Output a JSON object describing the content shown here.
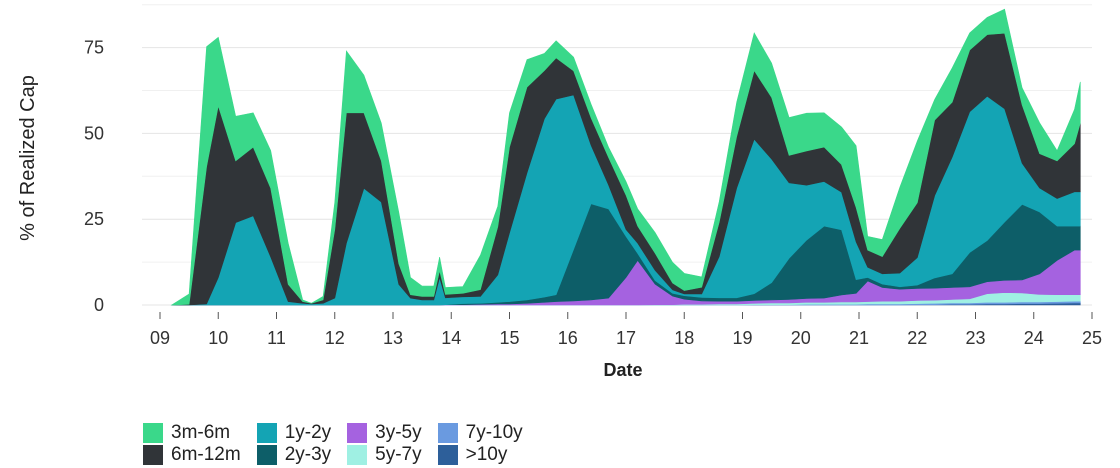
{
  "chart_data": {
    "type": "area",
    "stacked": true,
    "title": "",
    "xlabel": "Date",
    "ylabel": "% of Realized Cap",
    "x_tick_labels": [
      "09",
      "10",
      "11",
      "12",
      "13",
      "14",
      "15",
      "16",
      "17",
      "18",
      "19",
      "20",
      "21",
      "22",
      "23",
      "24",
      "25"
    ],
    "y_ticks": [
      0,
      25,
      50,
      75
    ],
    "xlim": [
      2009,
      2025
    ],
    "ylim": [
      0,
      88
    ],
    "grid": "horizontal",
    "legend_position": "bottom-left",
    "x": [
      2009.2,
      2009.5,
      2009.8,
      2010.0,
      2010.3,
      2010.6,
      2010.9,
      2011.2,
      2011.45,
      2011.6,
      2011.8,
      2012.0,
      2012.2,
      2012.5,
      2012.8,
      2013.1,
      2013.3,
      2013.5,
      2013.7,
      2013.8,
      2013.9,
      2014.2,
      2014.5,
      2014.8,
      2015.0,
      2015.3,
      2015.6,
      2015.8,
      2016.1,
      2016.4,
      2016.7,
      2017.0,
      2017.2,
      2017.5,
      2017.8,
      2018.0,
      2018.3,
      2018.6,
      2018.9,
      2019.2,
      2019.5,
      2019.8,
      2020.1,
      2020.4,
      2020.7,
      2020.95,
      2021.15,
      2021.4,
      2021.7,
      2022.0,
      2022.3,
      2022.6,
      2022.9,
      2023.2,
      2023.5,
      2023.8,
      2024.1,
      2024.4,
      2024.7,
      2024.8
    ],
    "series": [
      {
        "name": ">10y",
        "color": "#2d5f9a",
        "values": [
          0,
          0,
          0,
          0,
          0,
          0,
          0,
          0,
          0,
          0,
          0,
          0,
          0,
          0,
          0,
          0,
          0,
          0,
          0,
          0,
          0,
          0,
          0,
          0,
          0,
          0,
          0,
          0,
          0,
          0,
          0,
          0,
          0,
          0,
          0,
          0,
          0,
          0,
          0,
          0,
          0,
          0,
          0,
          0,
          0,
          0,
          0,
          0,
          0,
          0.1,
          0.1,
          0.2,
          0.2,
          0.3,
          0.3,
          0.4,
          0.4,
          0.5,
          0.6,
          0.6
        ]
      },
      {
        "name": "7y-10y",
        "color": "#6a9ae0",
        "values": [
          0,
          0,
          0,
          0,
          0,
          0,
          0,
          0,
          0,
          0,
          0,
          0,
          0,
          0,
          0,
          0,
          0,
          0,
          0,
          0,
          0,
          0,
          0,
          0,
          0,
          0,
          0,
          0,
          0,
          0,
          0,
          0,
          0,
          0,
          0,
          0,
          0,
          0,
          0,
          0.1,
          0.1,
          0.1,
          0.2,
          0.2,
          0.2,
          0.2,
          0.3,
          0.3,
          0.3,
          0.3,
          0.4,
          0.4,
          0.4,
          0.5,
          0.5,
          0.5,
          0.5,
          0.5,
          0.5,
          0.5
        ]
      },
      {
        "name": "5y-7y",
        "color": "#9ff0e3",
        "values": [
          0,
          0,
          0,
          0,
          0,
          0,
          0,
          0,
          0,
          0,
          0,
          0,
          0,
          0,
          0,
          0,
          0,
          0,
          0,
          0,
          0,
          0,
          0,
          0,
          0,
          0,
          0,
          0,
          0,
          0,
          0,
          0,
          0,
          0.1,
          0.1,
          0.2,
          0.2,
          0.3,
          0.3,
          0.4,
          0.5,
          0.5,
          0.6,
          0.6,
          0.7,
          0.7,
          0.7,
          0.8,
          0.8,
          0.9,
          0.9,
          1,
          1.2,
          2.5,
          2.8,
          2.6,
          2.2,
          2.0,
          1.9,
          1.9
        ]
      },
      {
        "name": "3y-5y",
        "color": "#a562e0",
        "values": [
          0,
          0,
          0,
          0,
          0,
          0,
          0,
          0,
          0,
          0,
          0,
          0,
          0,
          0,
          0,
          0,
          0,
          0,
          0,
          0,
          0.1,
          0.1,
          0.2,
          0.3,
          0.3,
          0.5,
          0.8,
          1,
          1.2,
          1.5,
          2,
          8,
          13,
          6,
          2.5,
          1.5,
          1,
          0.8,
          0.8,
          0.8,
          0.9,
          1,
          1.1,
          1.2,
          2,
          2.5,
          6,
          4,
          3.5,
          3.5,
          3.5,
          3.5,
          3.5,
          3.5,
          3.6,
          3.8,
          6,
          10,
          13,
          13
        ]
      },
      {
        "name": "2y-3y",
        "color": "#0d5e68",
        "values": [
          0,
          0,
          0,
          0,
          0,
          0,
          0,
          0,
          0,
          0,
          0,
          0,
          0,
          0,
          0,
          0,
          0,
          0,
          0,
          0,
          0,
          0.3,
          0.3,
          0.5,
          0.7,
          1,
          1.5,
          2,
          15,
          28,
          26,
          12,
          2,
          1,
          0.8,
          1,
          1,
          1,
          1,
          2,
          5,
          12,
          17,
          21,
          19,
          4,
          1,
          1,
          0.7,
          1,
          3,
          4,
          10,
          12,
          17,
          22,
          18,
          10,
          7,
          7
        ]
      },
      {
        "name": "1y-2y",
        "color": "#14a4b4",
        "values": [
          0,
          0,
          0.3,
          8,
          24,
          26,
          14,
          1,
          0.5,
          0.3,
          0.5,
          2,
          18,
          34,
          30,
          6,
          2,
          1.5,
          1.5,
          8,
          2,
          2,
          2,
          8,
          20,
          37,
          52,
          57,
          45,
          17,
          7,
          2,
          3,
          3,
          1,
          0.5,
          1,
          12,
          32,
          45,
          36,
          22,
          16,
          13,
          11,
          11,
          3,
          3,
          4,
          8,
          24,
          34,
          41,
          42,
          33,
          12,
          7,
          8,
          10,
          10
        ]
      },
      {
        "name": "6m-12m",
        "color": "#303438",
        "values": [
          0,
          0.2,
          40,
          50,
          18,
          20,
          20,
          5,
          0.5,
          0.2,
          1,
          20,
          38,
          22,
          12,
          6,
          1,
          1,
          1,
          2,
          1,
          1,
          2,
          14,
          25,
          25,
          14,
          12,
          7,
          8,
          8,
          10,
          5,
          5,
          2,
          1,
          2,
          10,
          15,
          20,
          18,
          8,
          10,
          10,
          8,
          10,
          5,
          5,
          13,
          16,
          22,
          16,
          18,
          18,
          22,
          17,
          10,
          11,
          14,
          20
        ]
      },
      {
        "name": "3m-6m",
        "color": "#3ad88a",
        "values": [
          0,
          3,
          35,
          20,
          13,
          10,
          11,
          12,
          0.5,
          0,
          1,
          8,
          18,
          11,
          11,
          15,
          5,
          3,
          3,
          4,
          2,
          2,
          10,
          6,
          10,
          8,
          5,
          5,
          4,
          4,
          3,
          4,
          5,
          6,
          6,
          5,
          3,
          6,
          10,
          11,
          10,
          11,
          11,
          10,
          11,
          18,
          4,
          5,
          12,
          18,
          6,
          10,
          5,
          5,
          7,
          5,
          9,
          3,
          10,
          12
        ]
      }
    ]
  },
  "legend": {
    "items": [
      {
        "label": "3m-6m",
        "color": "#3ad88a"
      },
      {
        "label": "6m-12m",
        "color": "#303438"
      },
      {
        "label": "1y-2y",
        "color": "#14a4b4"
      },
      {
        "label": "2y-3y",
        "color": "#0d5e68"
      },
      {
        "label": "3y-5y",
        "color": "#a562e0"
      },
      {
        "label": "5y-7y",
        "color": "#9ff0e3"
      },
      {
        "label": "7y-10y",
        "color": "#6a9ae0"
      },
      {
        "label": ">10y",
        "color": "#2d5f9a"
      }
    ]
  }
}
